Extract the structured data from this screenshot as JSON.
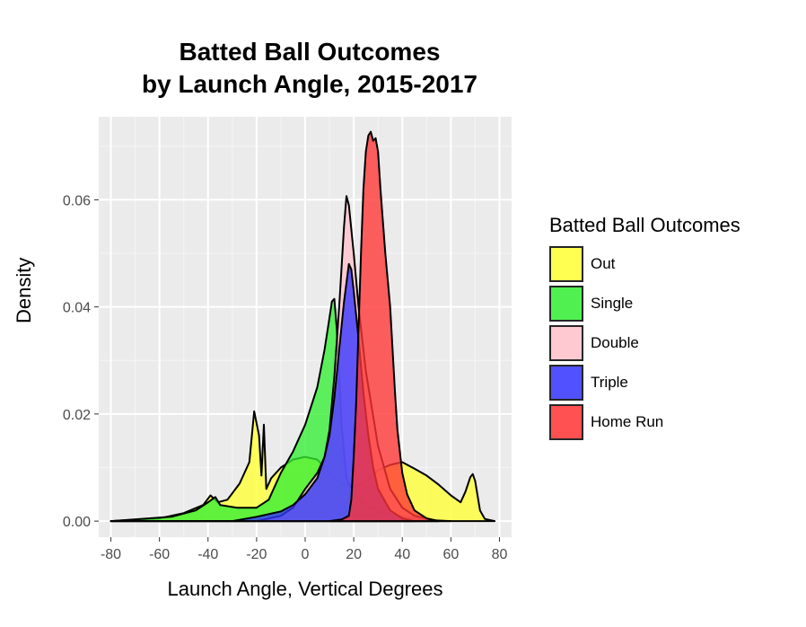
{
  "chart_data": {
    "type": "area",
    "title_line1": "Batted Ball Outcomes",
    "title_line2": "by Launch Angle, 2015-2017",
    "xlabel": "Launch Angle, Vertical Degrees",
    "ylabel": "Density",
    "xlim": [
      -85,
      85
    ],
    "ylim": [
      -0.003,
      0.0755
    ],
    "xticks": [
      -80,
      -60,
      -40,
      -20,
      0,
      20,
      40,
      60,
      80
    ],
    "yticks": [
      0.0,
      0.02,
      0.04,
      0.06
    ],
    "ytick_labels": [
      "0.00",
      "0.02",
      "0.04",
      "0.06"
    ],
    "grid": true,
    "legend_title": "Batted Ball Outcomes",
    "legend_position": "right",
    "series": [
      {
        "name": "Out",
        "color": "#ffff33",
        "points": [
          [
            -80,
            0
          ],
          [
            -60,
            0.0005
          ],
          [
            -50,
            0.0015
          ],
          [
            -42,
            0.003
          ],
          [
            -39,
            0.0048
          ],
          [
            -36,
            0.0035
          ],
          [
            -32,
            0.004
          ],
          [
            -27,
            0.007
          ],
          [
            -23,
            0.011
          ],
          [
            -21,
            0.0205
          ],
          [
            -19,
            0.016
          ],
          [
            -18,
            0.0085
          ],
          [
            -17,
            0.018
          ],
          [
            -16,
            0.006
          ],
          [
            -14,
            0.008
          ],
          [
            -10,
            0.01
          ],
          [
            -5,
            0.0115
          ],
          [
            0,
            0.012
          ],
          [
            5,
            0.0115
          ],
          [
            10,
            0.009
          ],
          [
            15,
            0.007
          ],
          [
            20,
            0.0065
          ],
          [
            25,
            0.0075
          ],
          [
            30,
            0.0095
          ],
          [
            35,
            0.0105
          ],
          [
            40,
            0.011
          ],
          [
            45,
            0.0098
          ],
          [
            50,
            0.0085
          ],
          [
            55,
            0.0068
          ],
          [
            60,
            0.0048
          ],
          [
            64,
            0.0035
          ],
          [
            66,
            0.0055
          ],
          [
            68,
            0.0082
          ],
          [
            69,
            0.0088
          ],
          [
            70,
            0.0075
          ],
          [
            72,
            0.002
          ],
          [
            74,
            0.0004
          ],
          [
            78,
            0
          ]
        ]
      },
      {
        "name": "Single",
        "color": "#33ee33",
        "points": [
          [
            -80,
            0
          ],
          [
            -55,
            0.0008
          ],
          [
            -45,
            0.002
          ],
          [
            -40,
            0.0035
          ],
          [
            -37,
            0.0045
          ],
          [
            -35,
            0.003
          ],
          [
            -28,
            0.0025
          ],
          [
            -20,
            0.0025
          ],
          [
            -15,
            0.004
          ],
          [
            -10,
            0.009
          ],
          [
            -5,
            0.013
          ],
          [
            0,
            0.018
          ],
          [
            5,
            0.025
          ],
          [
            8,
            0.032
          ],
          [
            10,
            0.038
          ],
          [
            11,
            0.041
          ],
          [
            12,
            0.0415
          ],
          [
            13,
            0.036
          ],
          [
            15,
            0.018
          ],
          [
            17,
            0.008
          ],
          [
            20,
            0.005
          ],
          [
            25,
            0.003
          ],
          [
            30,
            0.0018
          ],
          [
            40,
            0.0008
          ],
          [
            50,
            0.0002
          ],
          [
            60,
            0
          ]
        ]
      },
      {
        "name": "Double",
        "color": "#ffc0cb",
        "points": [
          [
            -80,
            0
          ],
          [
            -20,
            0
          ],
          [
            -10,
            0.001
          ],
          [
            -5,
            0.0025
          ],
          [
            0,
            0.006
          ],
          [
            5,
            0.009
          ],
          [
            8,
            0.012
          ],
          [
            10,
            0.017
          ],
          [
            12,
            0.027
          ],
          [
            14,
            0.04
          ],
          [
            16,
            0.055
          ],
          [
            17,
            0.0607
          ],
          [
            18,
            0.059
          ],
          [
            20,
            0.05
          ],
          [
            22,
            0.04
          ],
          [
            25,
            0.028
          ],
          [
            30,
            0.014
          ],
          [
            35,
            0.006
          ],
          [
            40,
            0.0025
          ],
          [
            45,
            0.001
          ],
          [
            55,
            0
          ]
        ]
      },
      {
        "name": "Triple",
        "color": "#3333ff",
        "points": [
          [
            -80,
            0
          ],
          [
            -30,
            0
          ],
          [
            -20,
            0.0008
          ],
          [
            -10,
            0.0018
          ],
          [
            -5,
            0.003
          ],
          [
            0,
            0.005
          ],
          [
            5,
            0.008
          ],
          [
            8,
            0.012
          ],
          [
            10,
            0.016
          ],
          [
            12,
            0.023
          ],
          [
            14,
            0.032
          ],
          [
            16,
            0.041
          ],
          [
            18,
            0.048
          ],
          [
            19,
            0.047
          ],
          [
            20,
            0.043
          ],
          [
            22,
            0.034
          ],
          [
            24,
            0.024
          ],
          [
            26,
            0.016
          ],
          [
            28,
            0.01
          ],
          [
            30,
            0.006
          ],
          [
            35,
            0.002
          ],
          [
            40,
            0.0005
          ],
          [
            45,
            0
          ]
        ]
      },
      {
        "name": "Home Run",
        "color": "#ff3333",
        "points": [
          [
            10,
            0
          ],
          [
            15,
            0.0003
          ],
          [
            18,
            0.001
          ],
          [
            19,
            0.004
          ],
          [
            20,
            0.012
          ],
          [
            21,
            0.022
          ],
          [
            22,
            0.036
          ],
          [
            23,
            0.05
          ],
          [
            24,
            0.062
          ],
          [
            25,
            0.069
          ],
          [
            26,
            0.072
          ],
          [
            27,
            0.0727
          ],
          [
            28,
            0.071
          ],
          [
            29,
            0.0715
          ],
          [
            30,
            0.069
          ],
          [
            31,
            0.062
          ],
          [
            32,
            0.056
          ],
          [
            33,
            0.05
          ],
          [
            34,
            0.045
          ],
          [
            35,
            0.04
          ],
          [
            36,
            0.032
          ],
          [
            37,
            0.024
          ],
          [
            38,
            0.017
          ],
          [
            40,
            0.009
          ],
          [
            42,
            0.005
          ],
          [
            45,
            0.002
          ],
          [
            50,
            0.0005
          ],
          [
            55,
            0
          ]
        ]
      }
    ]
  }
}
